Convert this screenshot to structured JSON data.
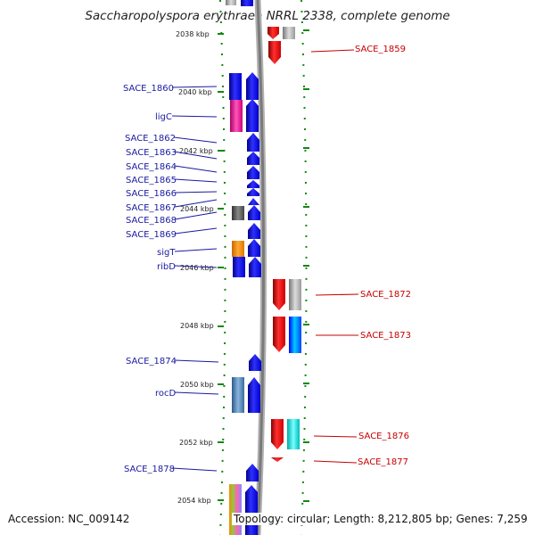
{
  "title": "Saccharopolyspora erythraea NRRL 2338, complete genome",
  "accession": "Accession: NC_009142",
  "topology": "Topology: circular; Length: 8,212,805 bp; Genes: 7,259",
  "kbp_labels": [
    "2038 kbp",
    "2040 kbp",
    "2042 kbp",
    "2044 kbp",
    "2046 kbp",
    "2048 kbp",
    "2050 kbp",
    "2052 kbp",
    "2054 kbp"
  ],
  "left_genes": [
    "SACE_1860",
    "ligC",
    "SACE_1862",
    "SACE_1863",
    "SACE_1864",
    "SACE_1865",
    "SACE_1866",
    "SACE_1867",
    "SACE_1868",
    "SACE_1869",
    "sigT",
    "ribD",
    "SACE_1874",
    "rocD",
    "SACE_1878"
  ],
  "right_genes": [
    "SACE_1859",
    "SACE_1872",
    "SACE_1873",
    "SACE_1876",
    "SACE_1877"
  ],
  "colors": {
    "forward_strand": "#0000ff",
    "reverse_strand": "#ff0000",
    "left_label": "#1a1aa0",
    "right_label": "#c80000",
    "tick": "#118811",
    "backbone": "#888888"
  }
}
